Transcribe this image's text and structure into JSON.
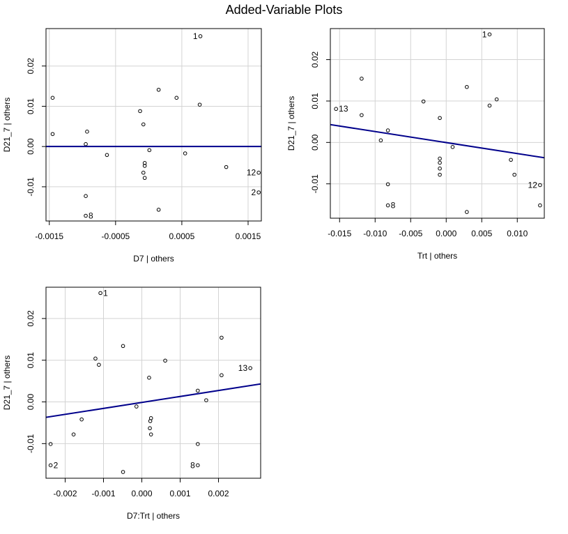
{
  "title": "Added-Variable Plots",
  "chart_data": [
    {
      "type": "scatter",
      "xlabel": "D7 | others",
      "ylabel": "D21_7  | others",
      "xlim": [
        -0.00155,
        0.0017
      ],
      "ylim": [
        -0.0185,
        0.0293
      ],
      "xticks": [
        -0.0015,
        -0.0005,
        0.0005,
        0.0015
      ],
      "xtick_labels": [
        "-0.0015",
        "-0.0005",
        "0.0005",
        "0.0015"
      ],
      "yticks": [
        -0.01,
        0.0,
        0.01,
        0.02
      ],
      "ytick_labels": [
        "-0.01",
        "0.00",
        "0.01",
        "0.02"
      ],
      "grid": true,
      "points": [
        {
          "x": 0.00078,
          "y": 0.0274,
          "label": "1",
          "label_side": "left"
        },
        {
          "x": -0.00145,
          "y": 0.0121
        },
        {
          "x": 0.00015,
          "y": 0.0141
        },
        {
          "x": 0.00042,
          "y": 0.0121
        },
        {
          "x": 0.00077,
          "y": 0.0104
        },
        {
          "x": -0.00013,
          "y": 0.0088
        },
        {
          "x": -8e-05,
          "y": 0.0055
        },
        {
          "x": -0.00145,
          "y": 0.0031
        },
        {
          "x": -0.00093,
          "y": 0.0037
        },
        {
          "x": -0.00095,
          "y": 0.0006
        },
        {
          "x": -0.00063,
          "y": -0.0021
        },
        {
          "x": 1e-05,
          "y": -0.0009
        },
        {
          "x": 0.00055,
          "y": -0.0017
        },
        {
          "x": -6e-05,
          "y": -0.0041
        },
        {
          "x": -6e-05,
          "y": -0.0048
        },
        {
          "x": -8e-05,
          "y": -0.0065
        },
        {
          "x": -6e-05,
          "y": -0.0078
        },
        {
          "x": 0.00117,
          "y": -0.0051
        },
        {
          "x": 0.00166,
          "y": -0.0065,
          "label": "12",
          "label_side": "left"
        },
        {
          "x": 0.00166,
          "y": -0.0114,
          "label": "2",
          "label_side": "left"
        },
        {
          "x": -0.00095,
          "y": -0.0123
        },
        {
          "x": 0.00015,
          "y": -0.0157
        },
        {
          "x": -0.00095,
          "y": -0.0172,
          "label": "8",
          "label_side": "right"
        }
      ],
      "fit_line": {
        "x": [
          -0.00155,
          0.0017
        ],
        "y": [
          0.0,
          0.0
        ]
      }
    },
    {
      "type": "scatter",
      "xlabel": "Trt | others",
      "ylabel": "D21_7  | others",
      "xlim": [
        -0.0163,
        0.0138
      ],
      "ylim": [
        -0.0183,
        0.0275
      ],
      "xticks": [
        -0.015,
        -0.01,
        -0.005,
        0.0,
        0.005,
        0.01
      ],
      "xtick_labels": [
        "-0.015",
        "-0.010",
        "-0.005",
        "0.000",
        "0.005",
        "0.010"
      ],
      "yticks": [
        -0.01,
        0.0,
        0.01,
        0.02
      ],
      "ytick_labels": [
        "-0.01",
        "0.00",
        "0.01",
        "0.02"
      ],
      "grid": true,
      "points": [
        {
          "x": 0.0061,
          "y": 0.0261,
          "label": "1",
          "label_side": "left"
        },
        {
          "x": -0.0119,
          "y": 0.0154
        },
        {
          "x": 0.0029,
          "y": 0.0134
        },
        {
          "x": 0.0071,
          "y": 0.0104
        },
        {
          "x": -0.0032,
          "y": 0.0099
        },
        {
          "x": 0.0061,
          "y": 0.0089
        },
        {
          "x": -0.0155,
          "y": 0.0081,
          "label": "13",
          "label_side": "right"
        },
        {
          "x": -0.0119,
          "y": 0.0066
        },
        {
          "x": -0.0009,
          "y": 0.0059
        },
        {
          "x": -0.0082,
          "y": 0.0029
        },
        {
          "x": -0.0092,
          "y": 0.0005
        },
        {
          "x": 0.0009,
          "y": -0.0011
        },
        {
          "x": -0.0009,
          "y": -0.0039
        },
        {
          "x": -0.0009,
          "y": -0.0049
        },
        {
          "x": -0.0009,
          "y": -0.0063
        },
        {
          "x": -0.0009,
          "y": -0.0078
        },
        {
          "x": 0.0091,
          "y": -0.0042
        },
        {
          "x": 0.0096,
          "y": -0.0078
        },
        {
          "x": -0.0082,
          "y": -0.0101
        },
        {
          "x": 0.0132,
          "y": -0.0103,
          "label": "12",
          "label_side": "left"
        },
        {
          "x": -0.0082,
          "y": -0.0152,
          "label": "8",
          "label_side": "right"
        },
        {
          "x": 0.0132,
          "y": -0.0152
        },
        {
          "x": 0.0029,
          "y": -0.0168
        }
      ],
      "fit_line": {
        "x": [
          -0.0163,
          0.0138
        ],
        "y": [
          0.0043,
          -0.0037
        ]
      }
    },
    {
      "type": "scatter",
      "xlabel": "D7:Trt | others",
      "ylabel": "D21_7  | others",
      "xlim": [
        -0.0025,
        0.0031
      ],
      "ylim": [
        -0.0183,
        0.0275
      ],
      "xticks": [
        -0.002,
        -0.001,
        0.0,
        0.001,
        0.002
      ],
      "xtick_labels": [
        "-0.002",
        "-0.001",
        "0.000",
        "0.001",
        "0.002"
      ],
      "yticks": [
        -0.01,
        0.0,
        0.01,
        0.02
      ],
      "ytick_labels": [
        "-0.01",
        "0.00",
        "0.01",
        "0.02"
      ],
      "grid": true,
      "points": [
        {
          "x": -0.00108,
          "y": 0.0261,
          "label": "1",
          "label_side": "right"
        },
        {
          "x": 0.00208,
          "y": 0.0154
        },
        {
          "x": -0.00049,
          "y": 0.0134
        },
        {
          "x": -0.00121,
          "y": 0.0104
        },
        {
          "x": 0.00061,
          "y": 0.0099
        },
        {
          "x": -0.00112,
          "y": 0.0089
        },
        {
          "x": 0.00283,
          "y": 0.0081,
          "label": "13",
          "label_side": "left"
        },
        {
          "x": 0.00208,
          "y": 0.0064
        },
        {
          "x": 0.00019,
          "y": 0.0058
        },
        {
          "x": 0.00146,
          "y": 0.0027
        },
        {
          "x": 0.00168,
          "y": 0.0004
        },
        {
          "x": -0.00014,
          "y": -0.0011
        },
        {
          "x": 0.00024,
          "y": -0.0039
        },
        {
          "x": 0.00022,
          "y": -0.0046
        },
        {
          "x": 0.00021,
          "y": -0.0063
        },
        {
          "x": 0.00024,
          "y": -0.0078
        },
        {
          "x": -0.00157,
          "y": -0.0042
        },
        {
          "x": -0.00178,
          "y": -0.0078
        },
        {
          "x": -0.00238,
          "y": -0.0101
        },
        {
          "x": 0.00146,
          "y": -0.0101
        },
        {
          "x": -0.00238,
          "y": -0.0152,
          "label": "2",
          "label_side": "right"
        },
        {
          "x": 0.00146,
          "y": -0.0152,
          "label": "8",
          "label_side": "left"
        },
        {
          "x": -0.00049,
          "y": -0.0168
        }
      ],
      "fit_line": {
        "x": [
          -0.0025,
          0.0031
        ],
        "y": [
          -0.0037,
          0.0043
        ]
      }
    }
  ]
}
